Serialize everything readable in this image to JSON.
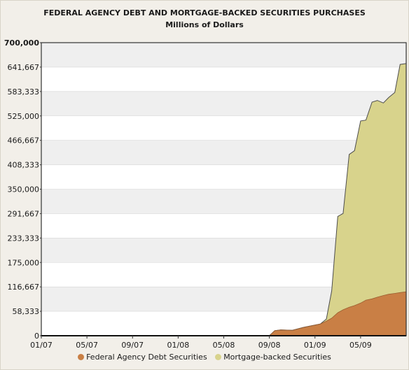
{
  "chart_data": {
    "type": "area",
    "stacked": true,
    "title": "FEDERAL AGENCY DEBT AND MORTGAGE-BACKED SECURITIES PURCHASES",
    "subtitle": "Millions of Dollars",
    "xlabel": "",
    "ylabel": "",
    "ylim": [
      0,
      700000
    ],
    "xlim": [
      "2007-01",
      "2009-09"
    ],
    "x_ticks": [
      "01/07",
      "05/07",
      "09/07",
      "01/08",
      "05/08",
      "09/08",
      "01/09",
      "05/09"
    ],
    "y_ticks": [
      "0",
      "58,333",
      "116,667",
      "175,000",
      "233,333",
      "291,667",
      "350,000",
      "408,333",
      "466,667",
      "525,000",
      "583,333",
      "641,667",
      "700,000"
    ],
    "y_tick_values": [
      0,
      58333,
      116667,
      175000,
      233333,
      291667,
      350000,
      408333,
      466667,
      525000,
      583333,
      641667,
      700000
    ],
    "grid": "horizontal bands",
    "legend_position": "bottom",
    "colors": {
      "agency": "#c97f45",
      "mbs": "#d8d38c",
      "band": "#efefef",
      "plot_bg": "#ffffff",
      "outline": "#4d4d4d"
    },
    "x": [
      "2007-01",
      "2008-09",
      "2008-09-15",
      "2008-10",
      "2008-11",
      "2008-12",
      "2009-01-15",
      "2009-02",
      "2009-02-15",
      "2009-03",
      "2009-03-15",
      "2009-04",
      "2009-04-15",
      "2009-05",
      "2009-05-15",
      "2009-06",
      "2009-06-15",
      "2009-07",
      "2009-07-15",
      "2009-08",
      "2009-08-15",
      "2009-09"
    ],
    "series": [
      {
        "name": "Federal Agency Debt Securities",
        "values": [
          0,
          0,
          12000,
          14000,
          13000,
          20000,
          28000,
          35000,
          42000,
          55000,
          62000,
          68000,
          72000,
          78000,
          85000,
          88000,
          92000,
          96000,
          99000,
          101000,
          103000,
          105000
        ]
      },
      {
        "name": "Mortgage-backed Securities",
        "values": [
          0,
          0,
          0,
          0,
          0,
          0,
          0,
          5000,
          65000,
          230000,
          230000,
          365000,
          370000,
          435000,
          430000,
          470000,
          470000,
          460000,
          470000,
          480000,
          545000,
          545000
        ]
      }
    ]
  }
}
